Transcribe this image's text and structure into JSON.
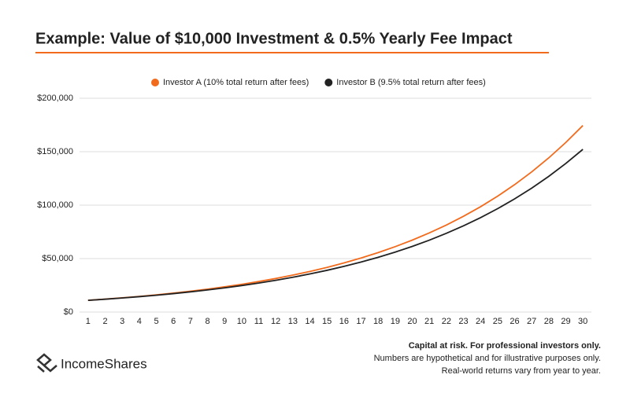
{
  "chart_data": {
    "type": "line",
    "title": "Example: Value of $10,000 Investment & 0.5% Yearly Fee Impact",
    "categories": [
      "1",
      "2",
      "3",
      "4",
      "5",
      "6",
      "7",
      "8",
      "9",
      "10",
      "11",
      "12",
      "13",
      "14",
      "15",
      "16",
      "17",
      "18",
      "19",
      "20",
      "21",
      "22",
      "23",
      "24",
      "25",
      "26",
      "27",
      "28",
      "29",
      "30"
    ],
    "series": [
      {
        "name": "Investor A (10% total return after fees)",
        "color": "#f26b1d",
        "values": [
          11000,
          12100,
          13310,
          14641,
          16105,
          17716,
          19487,
          21436,
          23579,
          25937,
          28531,
          31384,
          34523,
          37975,
          41772,
          45950,
          50545,
          55599,
          61159,
          67275,
          74002,
          81403,
          89543,
          98497,
          108347,
          119182,
          131100,
          144210,
          158631,
          174494
        ]
      },
      {
        "name": "Investor B (9.5% total return after fees)",
        "color": "#222222",
        "values": [
          10950,
          11990,
          13129,
          14377,
          15742,
          17238,
          18876,
          20669,
          22632,
          24782,
          27137,
          29715,
          32538,
          35629,
          39014,
          42720,
          46778,
          51222,
          56088,
          61417,
          67251,
          73640,
          80636,
          88297,
          96685,
          105870,
          115928,
          126941,
          138999,
          152204
        ]
      }
    ],
    "ylim": [
      0,
      200000
    ],
    "yticks": [
      {
        "value": 0,
        "label": "$0"
      },
      {
        "value": 50000,
        "label": "$50,000"
      },
      {
        "value": 100000,
        "label": "$100,000"
      },
      {
        "value": 150000,
        "label": "$150,000"
      },
      {
        "value": 200000,
        "label": "$200,000"
      }
    ],
    "grid": true,
    "legend": "top"
  },
  "brand": "IncomeShares",
  "disclaimer": [
    "Capital at risk. For professional investors only.",
    "Numbers are hypothetical and for illustrative purposes only.",
    "Real-world returns vary from year to year."
  ]
}
